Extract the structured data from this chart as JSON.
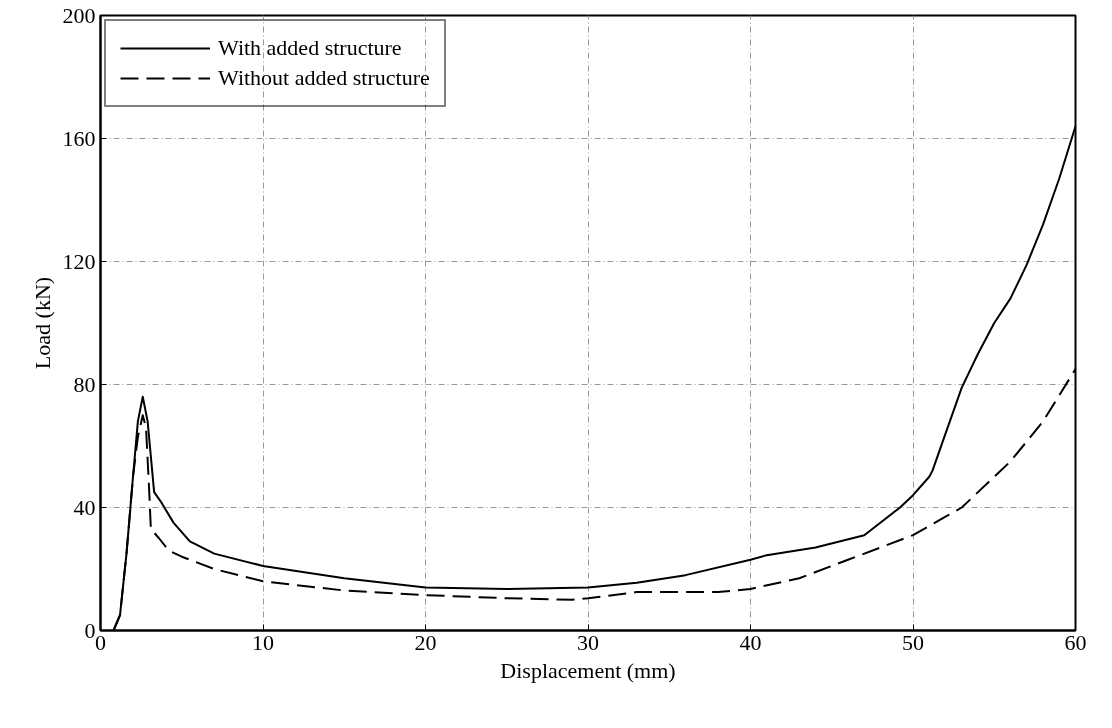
{
  "chart_data": {
    "type": "line",
    "xlabel": "Displacement (mm)",
    "ylabel": "Load (kN)",
    "xlim": [
      0,
      60
    ],
    "ylim": [
      0,
      200
    ],
    "xticks": [
      0,
      10,
      20,
      30,
      40,
      50,
      60
    ],
    "yticks": [
      0,
      40,
      80,
      120,
      160,
      200
    ],
    "grid": true,
    "legend": "top left",
    "series": [
      {
        "name": "With added structure",
        "color": "#000000",
        "line_style": "solid",
        "x": [
          0.8,
          1.2,
          1.6,
          2.0,
          2.3,
          2.6,
          2.9,
          3.3,
          3.7,
          4.5,
          5.5,
          7,
          10,
          15,
          20,
          25,
          30,
          33,
          36,
          40,
          41,
          44,
          47,
          49.2,
          50,
          51,
          51.2,
          52,
          53,
          54,
          55,
          56,
          57,
          58,
          59,
          60
        ],
        "values": [
          0,
          5,
          25,
          50,
          68,
          76,
          68,
          45,
          42,
          35,
          29,
          25,
          21,
          17,
          14,
          13.5,
          14,
          15.5,
          18,
          23,
          24.5,
          27,
          31,
          40,
          44,
          50,
          52,
          64,
          79,
          90,
          100,
          108,
          119,
          132,
          147,
          164
        ]
      },
      {
        "name": "Without added structure",
        "color": "#000000",
        "line_style": "dashed",
        "x": [
          0.8,
          1.2,
          1.6,
          2.0,
          2.3,
          2.6,
          2.8,
          3.0,
          3.1,
          3.6,
          4.2,
          5,
          7,
          10,
          15,
          20,
          25,
          29,
          30,
          33,
          38,
          40,
          43,
          46,
          48,
          50,
          52,
          53,
          56,
          58,
          60
        ],
        "values": [
          0,
          5,
          25,
          50,
          63,
          70,
          66,
          45,
          33,
          30,
          26,
          24,
          20,
          16,
          13,
          11.5,
          10.5,
          10,
          10.5,
          12.5,
          12.5,
          13.5,
          17,
          23,
          27,
          31,
          37,
          40,
          55,
          68,
          85
        ]
      }
    ]
  }
}
